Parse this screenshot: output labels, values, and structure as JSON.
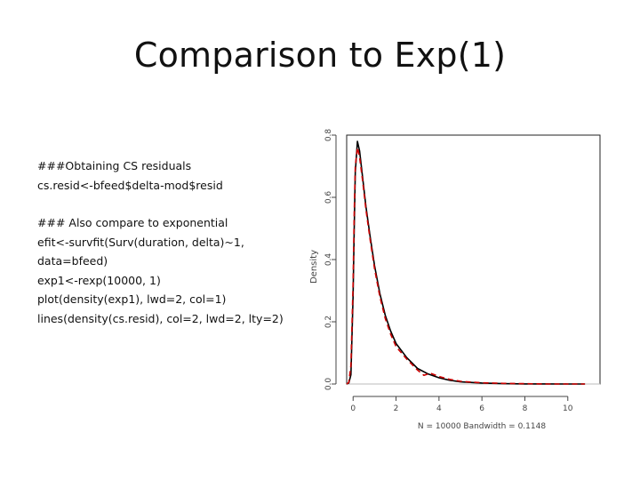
{
  "slide": {
    "title": "Comparison to Exp(1)"
  },
  "code": {
    "block1": [
      "###Obtaining CS residuals",
      "cs.resid<-bfeed$delta-mod$resid"
    ],
    "block2": [
      "### Also compare to exponential",
      "efit<-survfit(Surv(duration, delta)~1,",
      "data=bfeed)",
      "exp1<-rexp(10000, 1)",
      "plot(density(exp1), lwd=2, col=1)",
      "lines(density(cs.resid), col=2, lwd=2, lty=2)"
    ]
  },
  "chart_data": {
    "type": "line",
    "title": "",
    "xlabel": "N = 10000   Bandwidth = 0.1148",
    "ylabel": "Density",
    "xlim": [
      -0.3,
      11.5
    ],
    "ylim": [
      0,
      0.8
    ],
    "x_ticks": [
      0,
      2,
      4,
      6,
      8,
      10
    ],
    "x_tick_labels": [
      "0",
      "2",
      "4",
      "6",
      "8",
      "10"
    ],
    "y_ticks": [
      0.0,
      0.2,
      0.4,
      0.6,
      0.8
    ],
    "y_tick_labels": [
      "0.0",
      "0.2",
      "0.4",
      "0.6",
      "0.8"
    ],
    "grid": false,
    "colors": {
      "exp1": "#000000",
      "cs_resid": "#cc0000"
    },
    "series": [
      {
        "values": [
          [
            -0.3,
            0.0
          ],
          [
            -0.2,
            0.003
          ],
          [
            -0.1,
            0.03
          ],
          [
            0.0,
            0.28
          ],
          [
            0.05,
            0.5
          ],
          [
            0.1,
            0.68
          ],
          [
            0.2,
            0.78
          ],
          [
            0.3,
            0.75
          ],
          [
            0.45,
            0.66
          ],
          [
            0.6,
            0.57
          ],
          [
            0.8,
            0.47
          ],
          [
            1.0,
            0.38
          ],
          [
            1.25,
            0.29
          ],
          [
            1.5,
            0.22
          ],
          [
            1.75,
            0.17
          ],
          [
            2.0,
            0.13
          ],
          [
            2.5,
            0.085
          ],
          [
            3.0,
            0.05
          ],
          [
            3.5,
            0.032
          ],
          [
            4.0,
            0.02
          ],
          [
            4.5,
            0.012
          ],
          [
            5.0,
            0.007
          ],
          [
            6.0,
            0.003
          ],
          [
            7.0,
            0.001
          ],
          [
            8.0,
            0.0004
          ],
          [
            9.0,
            0.0002
          ],
          [
            10.0,
            0.0001
          ],
          [
            10.8,
            0.0
          ]
        ]
      },
      {
        "values": [
          [
            -0.3,
            0.0
          ],
          [
            -0.2,
            0.005
          ],
          [
            -0.1,
            0.06
          ],
          [
            0.0,
            0.32
          ],
          [
            0.05,
            0.55
          ],
          [
            0.1,
            0.7
          ],
          [
            0.2,
            0.76
          ],
          [
            0.3,
            0.73
          ],
          [
            0.45,
            0.65
          ],
          [
            0.6,
            0.56
          ],
          [
            0.8,
            0.46
          ],
          [
            1.0,
            0.37
          ],
          [
            1.25,
            0.28
          ],
          [
            1.5,
            0.21
          ],
          [
            1.75,
            0.16
          ],
          [
            2.0,
            0.12
          ],
          [
            2.5,
            0.08
          ],
          [
            3.0,
            0.045
          ],
          [
            3.3,
            0.028
          ],
          [
            3.6,
            0.035
          ],
          [
            4.0,
            0.024
          ],
          [
            4.5,
            0.015
          ],
          [
            5.0,
            0.009
          ],
          [
            5.5,
            0.006
          ],
          [
            6.0,
            0.004
          ],
          [
            7.0,
            0.002
          ],
          [
            8.0,
            0.001
          ],
          [
            9.0,
            0.0
          ],
          [
            10.0,
            0.0
          ],
          [
            10.8,
            0.0
          ]
        ]
      }
    ]
  }
}
